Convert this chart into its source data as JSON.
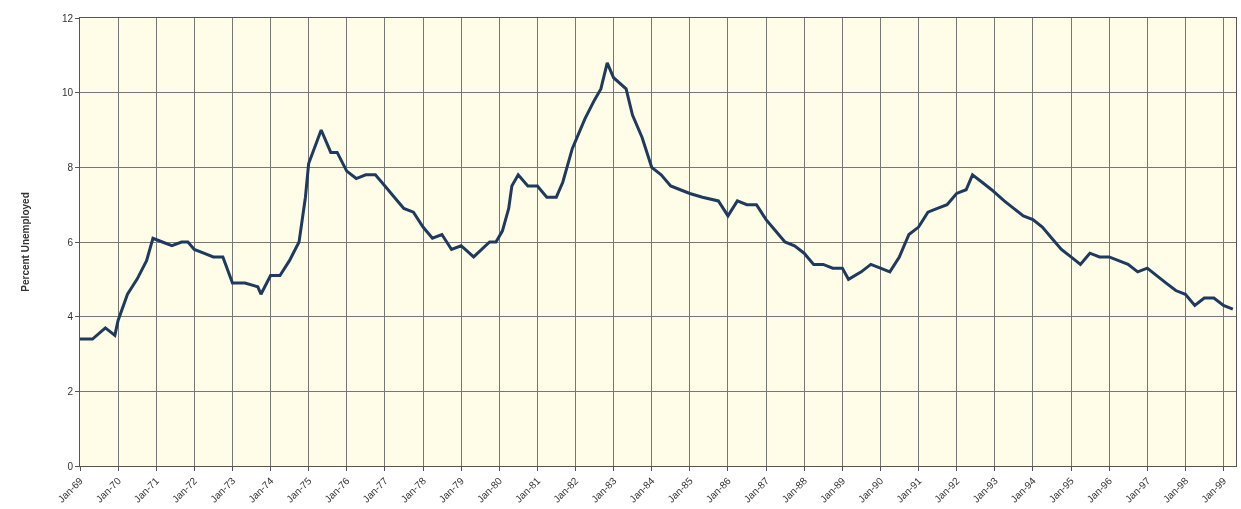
{
  "chart_data": {
    "type": "line",
    "ylabel": "Percent Unemployed",
    "x": [
      "1969-01",
      "1969-05",
      "1969-09",
      "1969-12",
      "1970-01",
      "1970-04",
      "1970-07",
      "1970-10",
      "1970-12",
      "1971-03",
      "1971-06",
      "1971-09",
      "1971-11",
      "1972-01",
      "1972-04",
      "1972-07",
      "1972-10",
      "1973-01",
      "1973-05",
      "1973-09",
      "1973-10",
      "1974-01",
      "1974-04",
      "1974-07",
      "1974-10",
      "1974-12",
      "1975-01",
      "1975-05",
      "1975-08",
      "1975-10",
      "1976-01",
      "1976-04",
      "1976-07",
      "1976-10",
      "1977-01",
      "1977-04",
      "1977-07",
      "1977-10",
      "1978-01",
      "1978-04",
      "1978-07",
      "1978-10",
      "1979-01",
      "1979-05",
      "1979-10",
      "1979-12",
      "1980-02",
      "1980-04",
      "1980-05",
      "1980-07",
      "1980-10",
      "1981-01",
      "1981-04",
      "1981-07",
      "1981-09",
      "1981-12",
      "1982-04",
      "1982-07",
      "1982-09",
      "1982-11",
      "1983-01",
      "1983-05",
      "1983-07",
      "1983-10",
      "1984-01",
      "1984-04",
      "1984-07",
      "1984-10",
      "1985-01",
      "1985-05",
      "1985-10",
      "1986-01",
      "1986-04",
      "1986-07",
      "1986-10",
      "1987-01",
      "1987-04",
      "1987-07",
      "1987-10",
      "1988-01",
      "1988-04",
      "1988-07",
      "1988-10",
      "1989-01",
      "1989-03",
      "1989-07",
      "1989-10",
      "1990-01",
      "1990-04",
      "1990-07",
      "1990-10",
      "1991-01",
      "1991-04",
      "1991-07",
      "1991-10",
      "1992-01",
      "1992-04",
      "1992-06",
      "1992-09",
      "1992-12",
      "1993-04",
      "1993-07",
      "1993-10",
      "1994-01",
      "1994-04",
      "1994-07",
      "1994-10",
      "1995-01",
      "1995-04",
      "1995-07",
      "1995-10",
      "1996-01",
      "1996-04",
      "1996-07",
      "1996-10",
      "1997-01",
      "1997-04",
      "1997-07",
      "1997-10",
      "1998-01",
      "1998-04",
      "1998-07",
      "1998-10",
      "1999-01",
      "1999-04"
    ],
    "series": [
      {
        "color": "#1f3a5f",
        "values": [
          3.4,
          3.4,
          3.7,
          3.5,
          3.9,
          4.6,
          5.0,
          5.5,
          6.1,
          6.0,
          5.9,
          6.0,
          6.0,
          5.8,
          5.7,
          5.6,
          5.6,
          4.9,
          4.9,
          4.8,
          4.6,
          5.1,
          5.1,
          5.5,
          6.0,
          7.2,
          8.1,
          9.0,
          8.4,
          8.4,
          7.9,
          7.7,
          7.8,
          7.8,
          7.5,
          7.2,
          6.9,
          6.8,
          6.4,
          6.1,
          6.2,
          5.8,
          5.9,
          5.6,
          6.0,
          6.0,
          6.3,
          6.9,
          7.5,
          7.8,
          7.5,
          7.5,
          7.2,
          7.2,
          7.6,
          8.5,
          9.3,
          9.8,
          10.1,
          10.8,
          10.4,
          10.1,
          9.4,
          8.8,
          8.0,
          7.8,
          7.5,
          7.4,
          7.3,
          7.2,
          7.1,
          6.7,
          7.1,
          7.0,
          7.0,
          6.6,
          6.3,
          6.0,
          5.9,
          5.7,
          5.4,
          5.4,
          5.3,
          5.3,
          5.0,
          5.2,
          5.4,
          5.3,
          5.2,
          5.6,
          6.2,
          6.4,
          6.8,
          6.9,
          7.0,
          7.3,
          7.4,
          7.8,
          7.6,
          7.4,
          7.1,
          6.9,
          6.7,
          6.6,
          6.4,
          6.1,
          5.8,
          5.6,
          5.4,
          5.7,
          5.6,
          5.6,
          5.5,
          5.4,
          5.2,
          5.3,
          5.1,
          4.9,
          4.7,
          4.6,
          4.3,
          4.5,
          4.5,
          4.3,
          4.2
        ]
      }
    ],
    "xlim": [
      "1969-01",
      "1999-05"
    ],
    "xticks": [
      {
        "value": "1969-01",
        "label": "Jan-69"
      },
      {
        "value": "1970-01",
        "label": "Jan-70"
      },
      {
        "value": "1971-01",
        "label": "Jan-71"
      },
      {
        "value": "1972-01",
        "label": "Jan-72"
      },
      {
        "value": "1973-01",
        "label": "Jan-73"
      },
      {
        "value": "1974-01",
        "label": "Jan-74"
      },
      {
        "value": "1975-01",
        "label": "Jan-75"
      },
      {
        "value": "1976-01",
        "label": "Jan-76"
      },
      {
        "value": "1977-01",
        "label": "Jan-77"
      },
      {
        "value": "1978-01",
        "label": "Jan-78"
      },
      {
        "value": "1979-01",
        "label": "Jan-79"
      },
      {
        "value": "1980-01",
        "label": "Jan-80"
      },
      {
        "value": "1981-01",
        "label": "Jan-81"
      },
      {
        "value": "1982-01",
        "label": "Jan-82"
      },
      {
        "value": "1983-01",
        "label": "Jan-83"
      },
      {
        "value": "1984-01",
        "label": "Jan-84"
      },
      {
        "value": "1985-01",
        "label": "Jan-85"
      },
      {
        "value": "1986-01",
        "label": "Jan-86"
      },
      {
        "value": "1987-01",
        "label": "Jan-87"
      },
      {
        "value": "1988-01",
        "label": "Jan-88"
      },
      {
        "value": "1989-01",
        "label": "Jan-89"
      },
      {
        "value": "1990-01",
        "label": "Jan-90"
      },
      {
        "value": "1991-01",
        "label": "Jan-91"
      },
      {
        "value": "1992-01",
        "label": "Jan-92"
      },
      {
        "value": "1993-01",
        "label": "Jan-93"
      },
      {
        "value": "1994-01",
        "label": "Jan-94"
      },
      {
        "value": "1995-01",
        "label": "Jan-95"
      },
      {
        "value": "1996-01",
        "label": "Jan-96"
      },
      {
        "value": "1997-01",
        "label": "Jan-97"
      },
      {
        "value": "1998-01",
        "label": "Jan-98"
      },
      {
        "value": "1999-01",
        "label": "Jan-99"
      }
    ],
    "ylim": [
      0,
      12
    ],
    "yticks": [
      0,
      2,
      4,
      6,
      8,
      10,
      12
    ],
    "grid": true,
    "marker": "none",
    "line_style": "solid"
  }
}
